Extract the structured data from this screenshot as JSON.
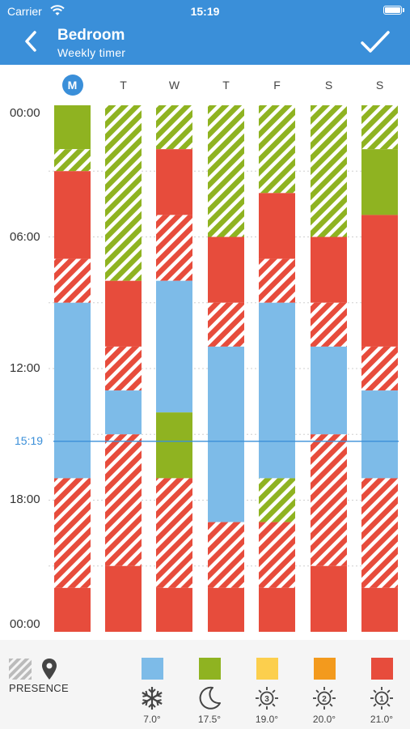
{
  "status": {
    "carrier": "Carrier",
    "time": "15:19"
  },
  "header": {
    "title": "Bedroom",
    "subtitle": "Weekly timer"
  },
  "days": [
    {
      "label": "M",
      "today": true
    },
    {
      "label": "T",
      "today": false
    },
    {
      "label": "W",
      "today": false
    },
    {
      "label": "T",
      "today": false
    },
    {
      "label": "F",
      "today": false
    },
    {
      "label": "S",
      "today": false
    },
    {
      "label": "S",
      "today": false
    }
  ],
  "time_labels": [
    "00:00",
    "06:00",
    "12:00",
    "18:00",
    "00:00"
  ],
  "now_label": "15:19",
  "now_hours": 15.3167,
  "colors": {
    "header": "#3a8fd9",
    "blue": "#7dbbe8",
    "green": "#8fb321",
    "yellow": "#fccf4d",
    "orange": "#f39a1d",
    "red": "#e74c3c"
  },
  "schedule": [
    [
      {
        "s": 0,
        "e": 2,
        "c": "green",
        "h": false
      },
      {
        "s": 2,
        "e": 3,
        "c": "green",
        "h": true
      },
      {
        "s": 3,
        "e": 7,
        "c": "red",
        "h": false
      },
      {
        "s": 7,
        "e": 9,
        "c": "red",
        "h": true
      },
      {
        "s": 9,
        "e": 17,
        "c": "blue",
        "h": false
      },
      {
        "s": 17,
        "e": 22,
        "c": "red",
        "h": true
      },
      {
        "s": 22,
        "e": 24,
        "c": "red",
        "h": false
      }
    ],
    [
      {
        "s": 0,
        "e": 8,
        "c": "green",
        "h": true
      },
      {
        "s": 8,
        "e": 11,
        "c": "red",
        "h": false
      },
      {
        "s": 11,
        "e": 13,
        "c": "red",
        "h": true
      },
      {
        "s": 13,
        "e": 15,
        "c": "blue",
        "h": false
      },
      {
        "s": 15,
        "e": 21,
        "c": "red",
        "h": true
      },
      {
        "s": 21,
        "e": 24,
        "c": "red",
        "h": false
      }
    ],
    [
      {
        "s": 0,
        "e": 2,
        "c": "green",
        "h": true
      },
      {
        "s": 2,
        "e": 5,
        "c": "red",
        "h": false
      },
      {
        "s": 5,
        "e": 8,
        "c": "red",
        "h": true
      },
      {
        "s": 8,
        "e": 14,
        "c": "blue",
        "h": false
      },
      {
        "s": 14,
        "e": 17,
        "c": "green",
        "h": false
      },
      {
        "s": 17,
        "e": 22,
        "c": "red",
        "h": true
      },
      {
        "s": 22,
        "e": 24,
        "c": "red",
        "h": false
      }
    ],
    [
      {
        "s": 0,
        "e": 6,
        "c": "green",
        "h": true
      },
      {
        "s": 6,
        "e": 9,
        "c": "red",
        "h": false
      },
      {
        "s": 9,
        "e": 11,
        "c": "red",
        "h": true
      },
      {
        "s": 11,
        "e": 19,
        "c": "blue",
        "h": false
      },
      {
        "s": 19,
        "e": 22,
        "c": "red",
        "h": true
      },
      {
        "s": 22,
        "e": 24,
        "c": "red",
        "h": false
      }
    ],
    [
      {
        "s": 0,
        "e": 4,
        "c": "green",
        "h": true
      },
      {
        "s": 4,
        "e": 7,
        "c": "red",
        "h": false
      },
      {
        "s": 7,
        "e": 9,
        "c": "red",
        "h": true
      },
      {
        "s": 9,
        "e": 17,
        "c": "blue",
        "h": false
      },
      {
        "s": 17,
        "e": 19,
        "c": "green",
        "h": true
      },
      {
        "s": 19,
        "e": 22,
        "c": "red",
        "h": true
      },
      {
        "s": 22,
        "e": 24,
        "c": "red",
        "h": false
      }
    ],
    [
      {
        "s": 0,
        "e": 6,
        "c": "green",
        "h": true
      },
      {
        "s": 6,
        "e": 9,
        "c": "red",
        "h": false
      },
      {
        "s": 9,
        "e": 11,
        "c": "red",
        "h": true
      },
      {
        "s": 11,
        "e": 15,
        "c": "blue",
        "h": false
      },
      {
        "s": 15,
        "e": 21,
        "c": "red",
        "h": true
      },
      {
        "s": 21,
        "e": 24,
        "c": "red",
        "h": false
      }
    ],
    [
      {
        "s": 0,
        "e": 2,
        "c": "green",
        "h": true
      },
      {
        "s": 2,
        "e": 5,
        "c": "green",
        "h": false
      },
      {
        "s": 5,
        "e": 11,
        "c": "red",
        "h": false
      },
      {
        "s": 11,
        "e": 13,
        "c": "red",
        "h": true
      },
      {
        "s": 13,
        "e": 17,
        "c": "blue",
        "h": false
      },
      {
        "s": 17,
        "e": 22,
        "c": "red",
        "h": true
      },
      {
        "s": 22,
        "e": 24,
        "c": "red",
        "h": false
      }
    ]
  ],
  "legend": {
    "presence_label": "PRESENCE",
    "modes": [
      {
        "color": "blue",
        "icon": "snowflake-icon",
        "temp": "7.0°"
      },
      {
        "color": "green",
        "icon": "moon-icon",
        "temp": "17.5°"
      },
      {
        "color": "yellow",
        "icon": "sun-3-icon",
        "temp": "19.0°",
        "num": "3"
      },
      {
        "color": "orange",
        "icon": "sun-2-icon",
        "temp": "20.0°",
        "num": "2"
      },
      {
        "color": "red",
        "icon": "sun-1-icon",
        "temp": "21.0°",
        "num": "1"
      }
    ]
  }
}
